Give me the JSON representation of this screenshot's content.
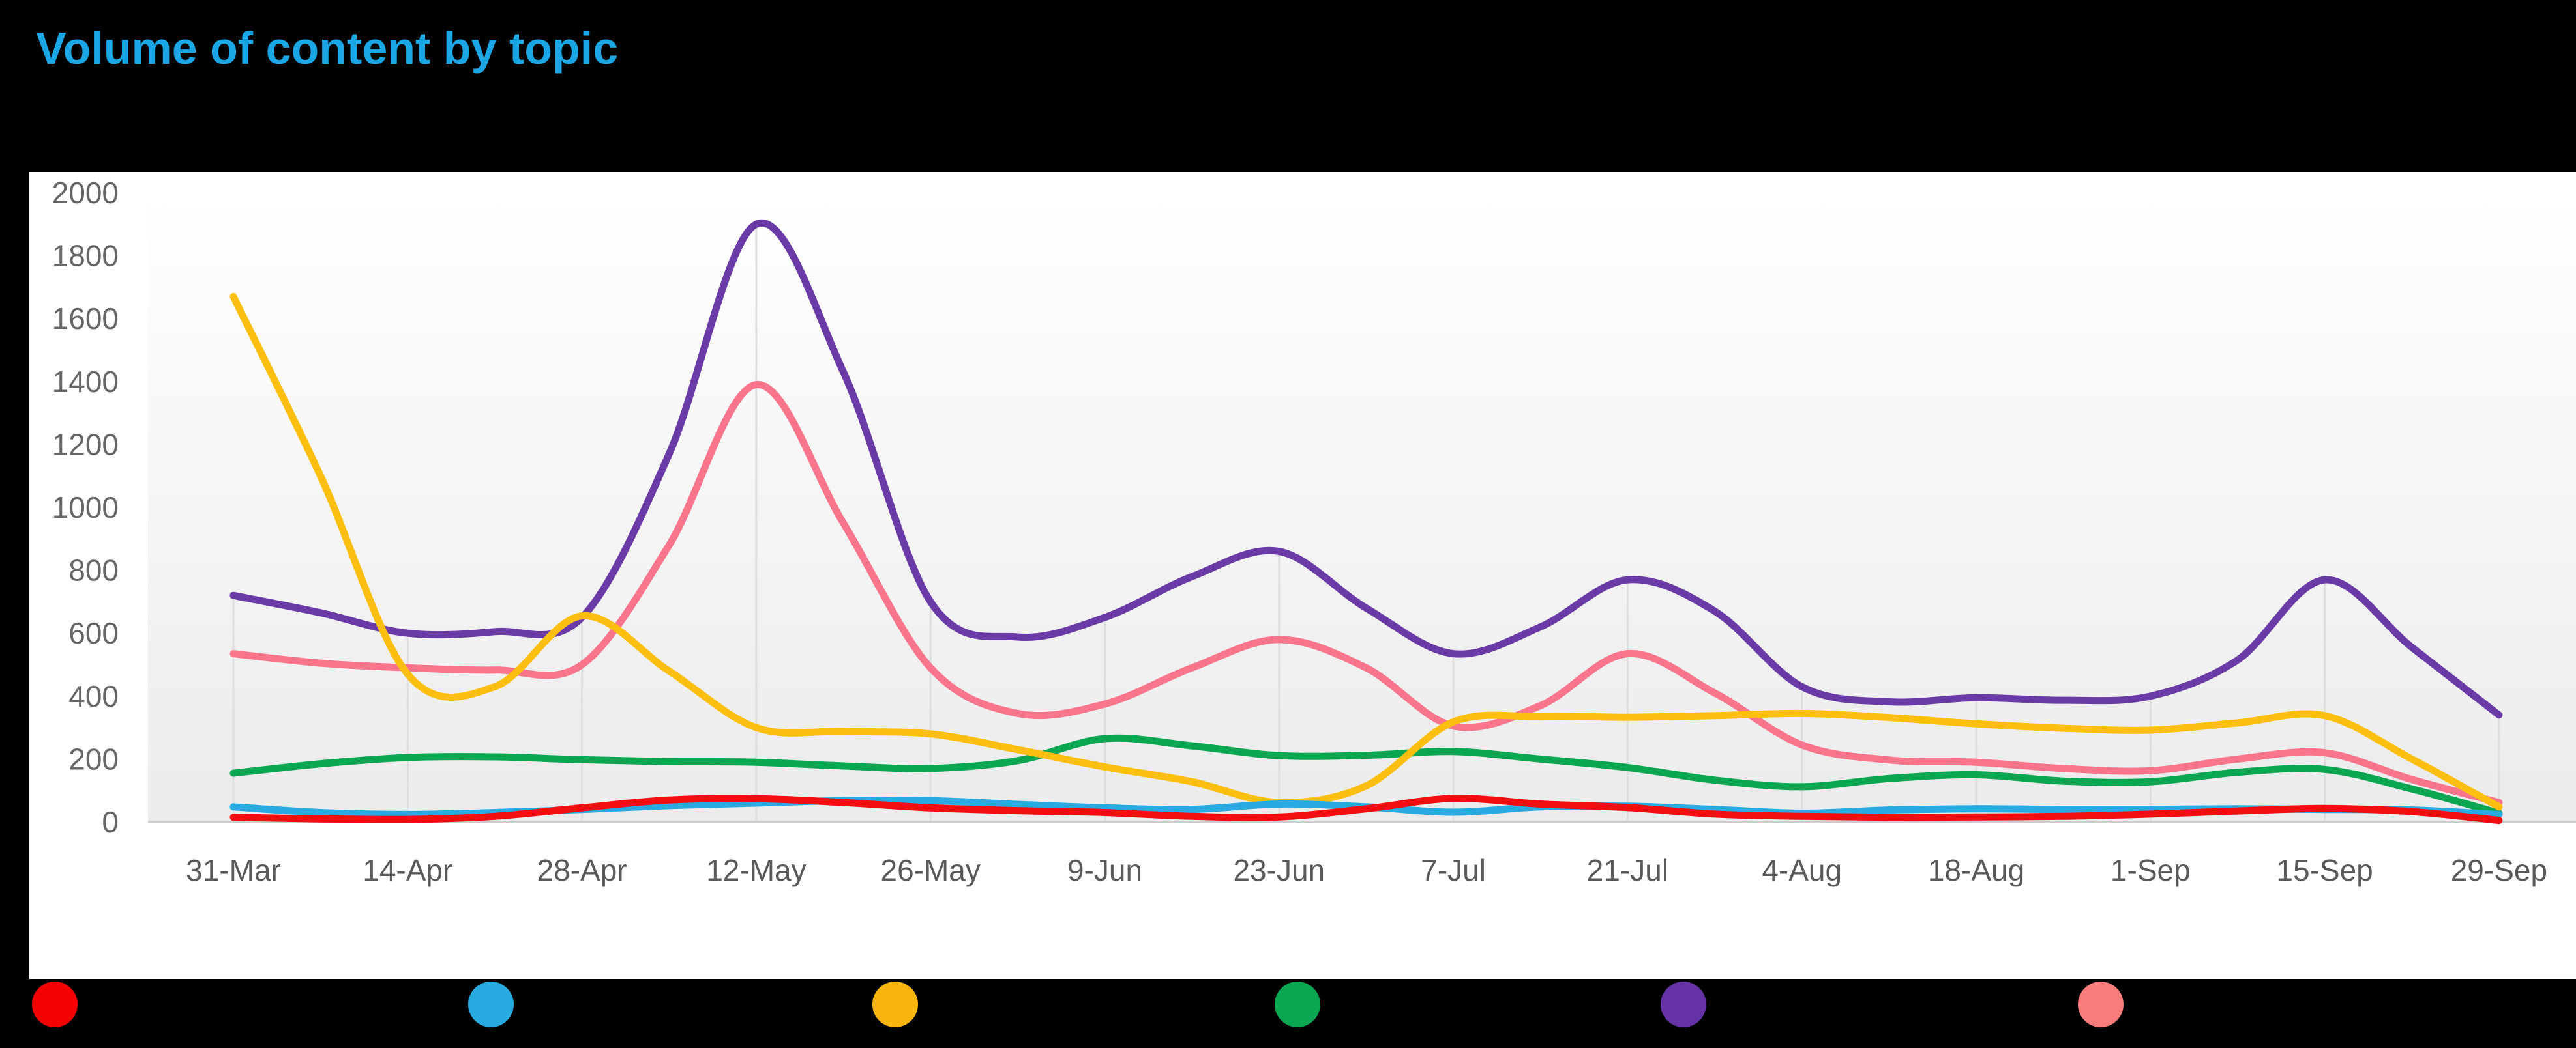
{
  "title": {
    "text": "Volume of content by topic",
    "color": "#1ba7e5"
  },
  "panel": {
    "background": "#ffffff",
    "page_background": "#000000"
  },
  "axes": {
    "y_label_color": "#666666",
    "x_label_color": "#595959",
    "gridline_color": "#dedede",
    "axis_line_color": "#cccccc",
    "plot_gradient_top": "#ffffff",
    "plot_gradient_bottom": "#ebebeb"
  },
  "chart_data": {
    "type": "line",
    "title": "Volume of content by topic",
    "xlabel": "",
    "ylabel": "",
    "ylim": [
      0,
      2000
    ],
    "y_ticks": [
      0,
      200,
      400,
      600,
      800,
      1000,
      1200,
      1400,
      1600,
      1800,
      2000
    ],
    "x_tick_labels": [
      "31-Mar",
      "14-Apr",
      "28-Apr",
      "12-May",
      "26-May",
      "9-Jun",
      "23-Jun",
      "7-Jul",
      "21-Jul",
      "4-Aug",
      "18-Aug",
      "1-Sep",
      "15-Sep",
      "29-Sep"
    ],
    "x": [
      "31-Mar",
      "7-Apr",
      "14-Apr",
      "21-Apr",
      "28-Apr",
      "5-May",
      "12-May",
      "19-May",
      "26-May",
      "2-Jun",
      "9-Jun",
      "16-Jun",
      "23-Jun",
      "30-Jun",
      "7-Jul",
      "14-Jul",
      "21-Jul",
      "28-Jul",
      "4-Aug",
      "11-Aug",
      "18-Aug",
      "25-Aug",
      "1-Sep",
      "8-Sep",
      "15-Sep",
      "22-Sep",
      "29-Sep"
    ],
    "grid": "vertical gridlines at biweekly ticks, drawn from purple series down to x-axis",
    "legend_position": "bottom",
    "legend_labels_visible": false,
    "series": [
      {
        "name": "topic-red",
        "color": "#f20d11",
        "values": [
          15,
          10,
          8,
          18,
          45,
          70,
          74,
          62,
          45,
          36,
          30,
          18,
          16,
          42,
          75,
          57,
          46,
          25,
          18,
          15,
          16,
          18,
          25,
          35,
          43,
          33,
          5
        ]
      },
      {
        "name": "topic-blue",
        "color": "#29abe2",
        "values": [
          48,
          30,
          24,
          30,
          40,
          52,
          60,
          68,
          68,
          56,
          45,
          40,
          57,
          48,
          31,
          48,
          50,
          40,
          28,
          38,
          42,
          40,
          40,
          42,
          40,
          38,
          24
        ]
      },
      {
        "name": "topic-yellow",
        "color": "#fcbf10",
        "values": [
          1670,
          1100,
          470,
          430,
          655,
          480,
          300,
          288,
          280,
          230,
          175,
          128,
          62,
          115,
          318,
          335,
          333,
          338,
          345,
          332,
          312,
          298,
          292,
          315,
          338,
          200,
          48
        ]
      },
      {
        "name": "topic-green",
        "color": "#0ba651",
        "values": [
          155,
          185,
          205,
          207,
          198,
          192,
          190,
          178,
          170,
          195,
          265,
          242,
          211,
          212,
          224,
          200,
          173,
          133,
          112,
          138,
          150,
          130,
          128,
          158,
          167,
          105,
          28
        ]
      },
      {
        "name": "topic-purple",
        "color": "#6a3ba6",
        "values": [
          720,
          665,
          600,
          605,
          650,
          1170,
          1900,
          1430,
          700,
          588,
          650,
          780,
          860,
          680,
          535,
          620,
          770,
          670,
          430,
          382,
          395,
          387,
          400,
          515,
          770,
          555,
          340
        ]
      },
      {
        "name": "topic-pink",
        "color": "#f8758c",
        "values": [
          535,
          505,
          490,
          483,
          500,
          880,
          1390,
          950,
          490,
          345,
          375,
          490,
          580,
          490,
          305,
          370,
          535,
          410,
          245,
          197,
          190,
          170,
          163,
          200,
          220,
          135,
          62
        ]
      }
    ],
    "legend_dots": [
      {
        "name": "legend-dot-red",
        "color": "#f40000",
        "x_center": 84
      },
      {
        "name": "legend-dot-blue",
        "color": "#29abe2",
        "x_center": 753
      },
      {
        "name": "legend-dot-yellow",
        "color": "#f7b50d",
        "x_center": 1373
      },
      {
        "name": "legend-dot-green",
        "color": "#0aa651",
        "x_center": 1990
      },
      {
        "name": "legend-dot-purple",
        "color": "#6633a6",
        "x_center": 2582
      },
      {
        "name": "legend-dot-pink",
        "color": "#f97c7c",
        "x_center": 3222
      }
    ]
  }
}
